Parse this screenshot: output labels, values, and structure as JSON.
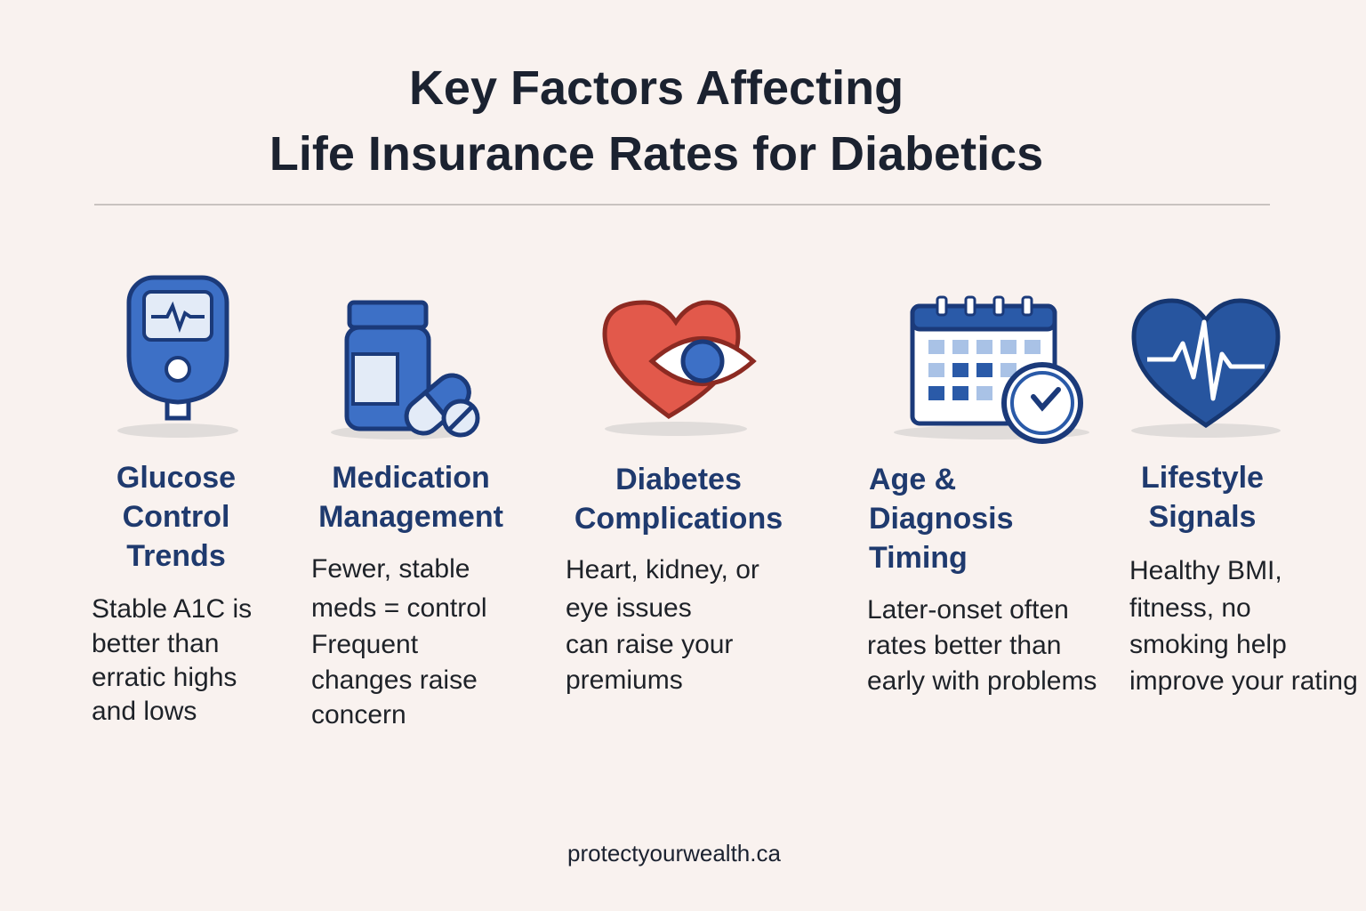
{
  "header": {
    "title_lines": [
      "Key Factors Affecting",
      "Life Insurance Rates for Diabetics"
    ]
  },
  "factors": [
    {
      "title_lines": [
        "Glucose",
        "Control",
        "Trends"
      ],
      "description_lines": [
        "Stable A1C is",
        "better than",
        "erratic highs",
        "and lows"
      ]
    },
    {
      "title_lines": [
        "Medication",
        "Management"
      ],
      "description_lines": [
        "Fewer, stable",
        "meds = control",
        "Frequent",
        "changes raise",
        "concern"
      ]
    },
    {
      "title_lines": [
        "Diabetes",
        "Complications"
      ],
      "description_lines": [
        "Heart, kidney, or",
        "eye issues",
        "can raise your",
        "premiums"
      ]
    },
    {
      "title_lines": [
        "Age &",
        "Diagnosis",
        "Timing"
      ],
      "description_lines": [
        "Later-onset often",
        "rates better than",
        "early with problems"
      ]
    },
    {
      "title_lines": [
        "Lifestyle",
        "Signals"
      ],
      "description_lines": [
        "Healthy BMI,",
        "fitness, no",
        "smoking help",
        "improve your rating"
      ]
    }
  ],
  "footer": {
    "text": "protectyourwealth.ca"
  }
}
